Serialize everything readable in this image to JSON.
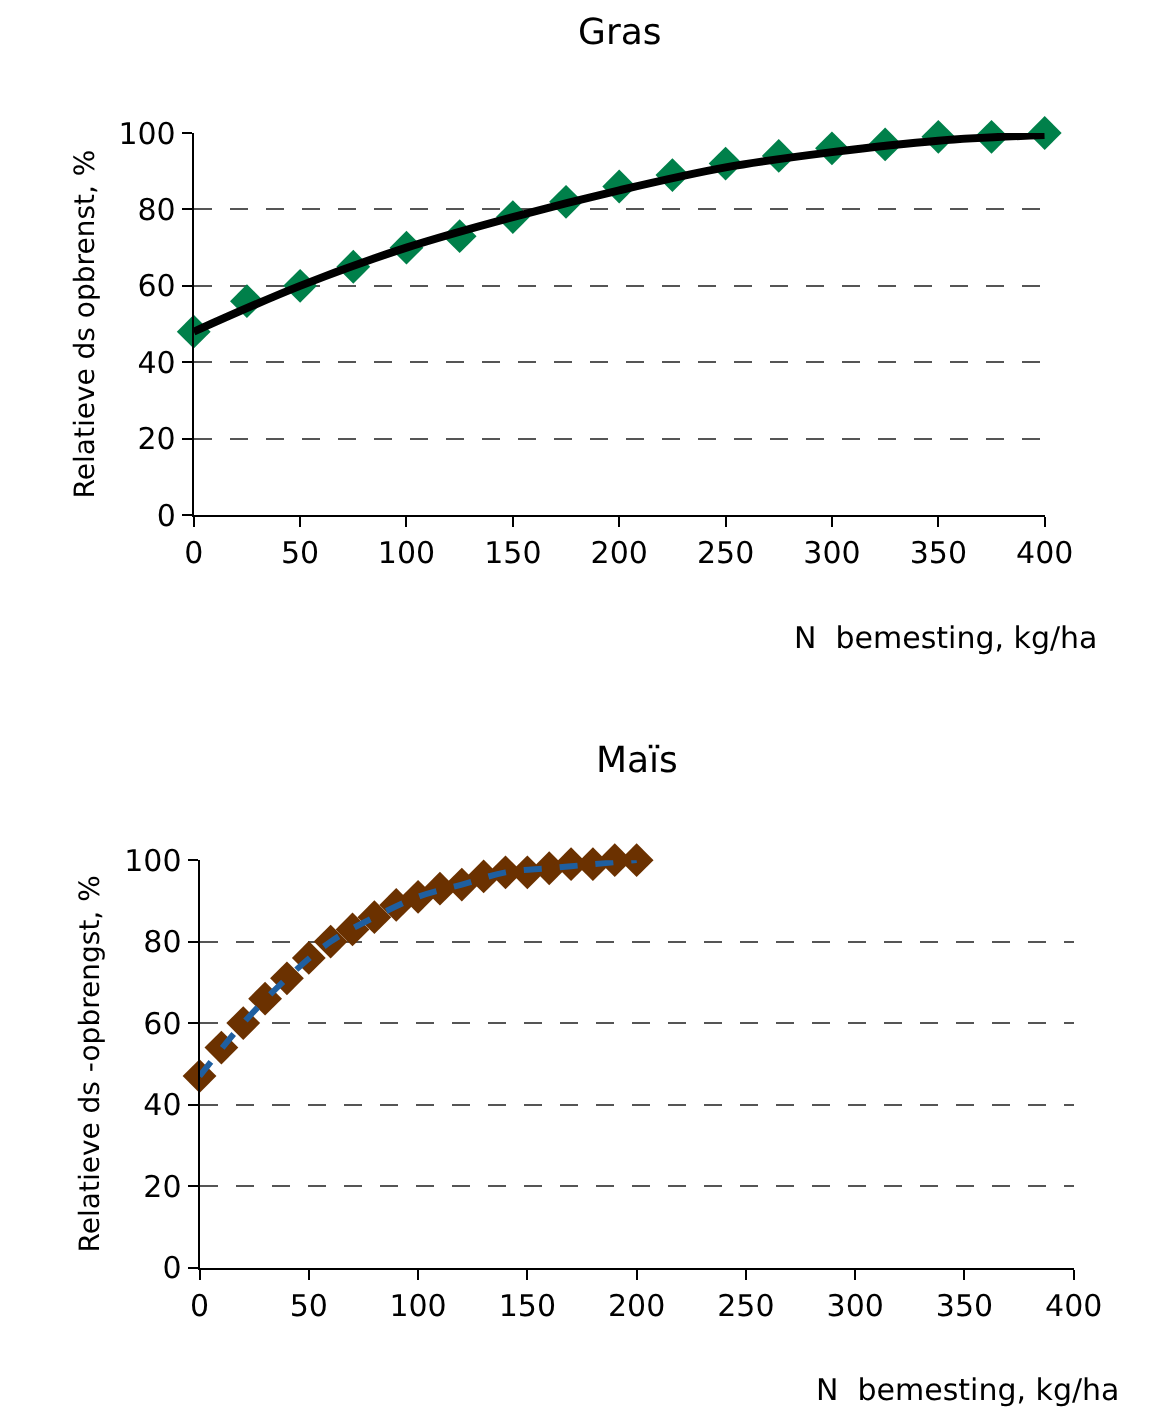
{
  "chart_data": [
    {
      "type": "scatter",
      "title": "Gras",
      "xlabel": "N  bemesting, kg/ha",
      "ylabel": "Relatieve ds opbrenst, %",
      "xlim": [
        0,
        400
      ],
      "xticks": [
        0,
        50,
        100,
        150,
        200,
        250,
        300,
        350,
        400
      ],
      "ylim": [
        0,
        100
      ],
      "yticks": [
        0,
        20,
        40,
        60,
        80,
        100
      ],
      "grid": "y",
      "series": [
        {
          "color": "#00804a",
          "marker": "diamond",
          "x": [
            0,
            25,
            50,
            75,
            100,
            125,
            150,
            175,
            200,
            225,
            250,
            275,
            300,
            325,
            350,
            375,
            400
          ],
          "values": [
            48,
            56,
            60,
            65,
            70,
            73,
            78,
            82,
            86,
            89,
            92,
            94,
            96,
            97,
            99,
            99,
            100
          ]
        },
        {
          "type": "line",
          "color": "#000000",
          "line_style": "solid",
          "x": [
            0,
            50,
            100,
            150,
            200,
            250,
            300,
            350,
            400
          ],
          "values": [
            48,
            60,
            70,
            78,
            85,
            91,
            95,
            98,
            99.5
          ]
        }
      ]
    },
    {
      "type": "scatter",
      "title": "Maïs",
      "xlabel": "N  bemesting, kg/ha",
      "ylabel": "Relatieve ds -opbrengst, %",
      "xlim": [
        0,
        400
      ],
      "xticks": [
        0,
        50,
        100,
        150,
        200,
        250,
        300,
        350,
        400
      ],
      "ylim": [
        0,
        100
      ],
      "yticks": [
        0,
        20,
        40,
        60,
        80,
        100
      ],
      "grid": "y",
      "series": [
        {
          "color": "#6b3100",
          "marker": "diamond",
          "x": [
            0,
            10,
            20,
            30,
            40,
            50,
            60,
            70,
            80,
            90,
            100,
            110,
            120,
            130,
            140,
            150,
            160,
            170,
            180,
            190,
            200
          ],
          "values": [
            47,
            54,
            60,
            66,
            71,
            76,
            80,
            83,
            86,
            89,
            91,
            93,
            94,
            96,
            97,
            97,
            98,
            99,
            99,
            100,
            100
          ]
        },
        {
          "type": "line",
          "color": "#1f5fa0",
          "line_style": "dashed",
          "x": [
            0,
            20,
            40,
            60,
            80,
            100,
            120,
            140,
            160,
            180,
            200
          ],
          "values": [
            47,
            60,
            71,
            80,
            86,
            91,
            94,
            97,
            98,
            99,
            100
          ]
        }
      ]
    }
  ]
}
